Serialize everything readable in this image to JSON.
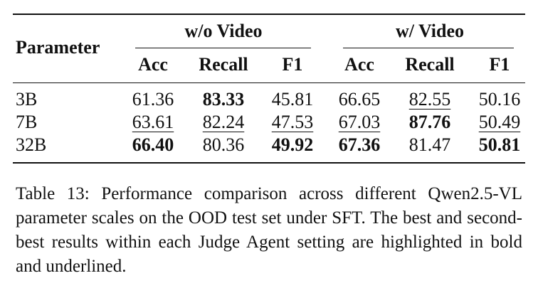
{
  "table": {
    "row_header": "Parameter",
    "groups": [
      "w/o Video",
      "w/ Video"
    ],
    "columns": [
      "Acc",
      "Recall",
      "F1",
      "Acc",
      "Recall",
      "F1"
    ],
    "rows": [
      {
        "label": "3B",
        "cells": [
          {
            "text": "61.36"
          },
          {
            "text": "83.33",
            "style": "bold"
          },
          {
            "text": "45.81"
          },
          {
            "text": "66.65"
          },
          {
            "text": "82.55",
            "style": "underline"
          },
          {
            "text": "50.16"
          }
        ]
      },
      {
        "label": "7B",
        "cells": [
          {
            "text": "63.61",
            "style": "underline"
          },
          {
            "text": "82.24",
            "style": "underline"
          },
          {
            "text": "47.53",
            "style": "underline"
          },
          {
            "text": "67.03",
            "style": "underline"
          },
          {
            "text": "87.76",
            "style": "bold"
          },
          {
            "text": "50.49",
            "style": "underline"
          }
        ]
      },
      {
        "label": "32B",
        "cells": [
          {
            "text": "66.40",
            "style": "bold"
          },
          {
            "text": "80.36"
          },
          {
            "text": "49.92",
            "style": "bold"
          },
          {
            "text": "67.36",
            "style": "bold"
          },
          {
            "text": "81.47"
          },
          {
            "text": "50.81",
            "style": "bold"
          }
        ]
      }
    ]
  },
  "caption": "Table 13: Performance comparison across different Qwen2.5-VL parameter scales on the OOD test set under SFT. The best and second-best results within each Judge Agent setting are highlighted in bold and underlined."
}
